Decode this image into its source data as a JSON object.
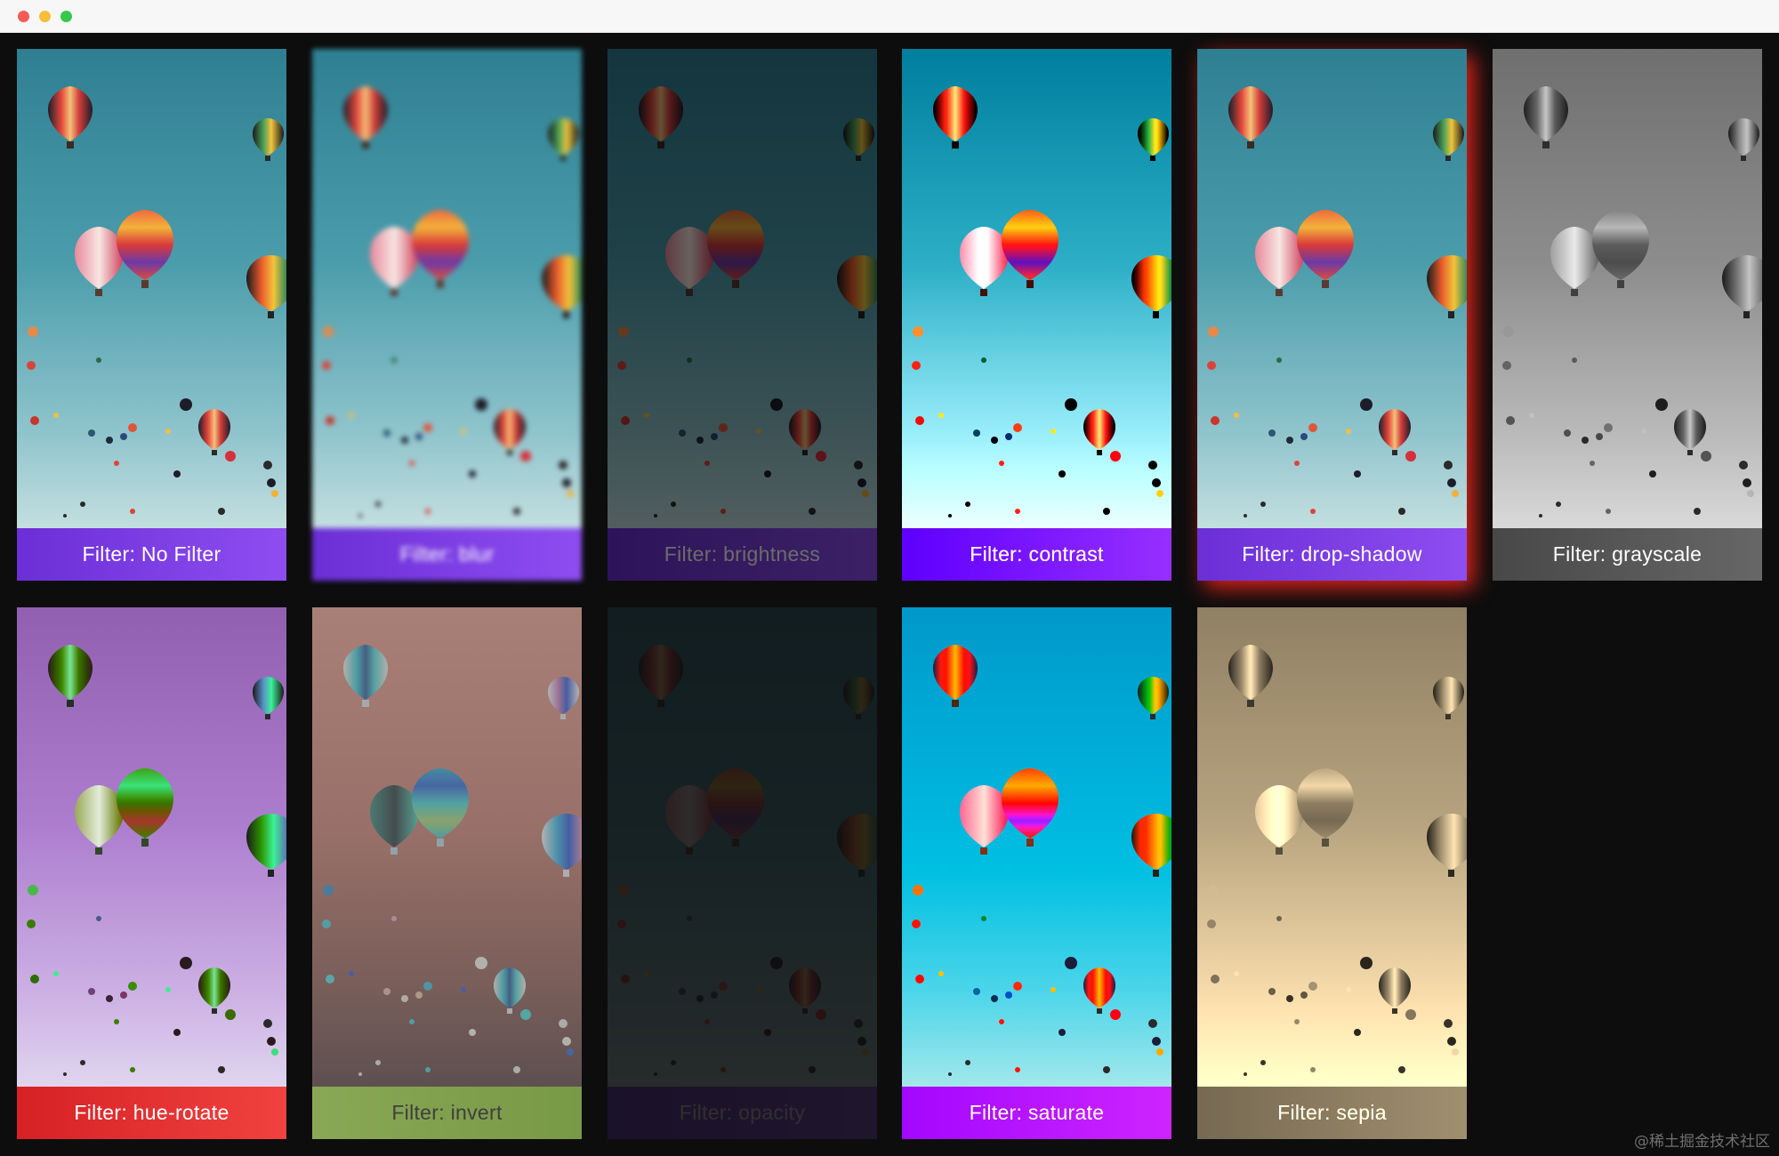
{
  "window": {
    "controls": [
      "close-dot",
      "minimize-dot",
      "zoom-dot"
    ]
  },
  "cards": [
    {
      "key": "none",
      "label": "Filter: No Filter"
    },
    {
      "key": "blur",
      "label": "Filter: blur"
    },
    {
      "key": "brightness",
      "label": "Filter: brightness"
    },
    {
      "key": "contrast",
      "label": "Filter: contrast"
    },
    {
      "key": "drop-shadow",
      "label": "Filter: drop-shadow"
    },
    {
      "key": "grayscale",
      "label": "Filter: grayscale"
    },
    {
      "key": "hue-rotate",
      "label": "Filter: hue-rotate"
    },
    {
      "key": "invert",
      "label": "Filter: invert"
    },
    {
      "key": "opacity",
      "label": "Filter: opacity"
    },
    {
      "key": "saturate",
      "label": "Filter: saturate"
    },
    {
      "key": "sepia",
      "label": "Filter: sepia"
    }
  ],
  "watermark": "@稀土掘金技术社区",
  "colors": {
    "background": "#0d0d0d",
    "label_purple": "#8e4df1",
    "drop_shadow_red": "#e0241b"
  }
}
